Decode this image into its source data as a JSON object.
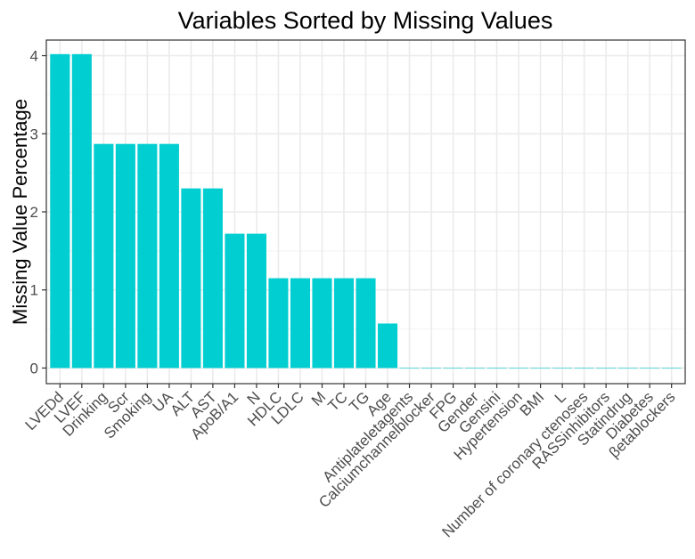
{
  "chart_data": {
    "type": "bar",
    "title": "Variables Sorted by Missing Values",
    "xlabel": "",
    "ylabel": "Missing Value Percentage",
    "ylim": [
      -0.2,
      4.2
    ],
    "yticks": [
      0,
      1,
      2,
      3,
      4
    ],
    "bar_color": "#00CED1",
    "categories": [
      "LVEDd",
      "LVEF",
      "Drinking",
      "Scr",
      "Smoking",
      "UA",
      "ALT",
      "AST",
      "ApoB/A1",
      "N",
      "HDLC",
      "LDLC",
      "M",
      "TC",
      "TG",
      "Age",
      "Antiplateletagents",
      "Calciumchannelblocker",
      "FPG",
      "Gender",
      "Gensini",
      "Hypertension",
      "BMI",
      "L",
      "Number of coronary ctenoses",
      "RASSinhibitors",
      "Statindrug",
      "Diabetes",
      "βetablockers"
    ],
    "values": [
      4.02,
      4.02,
      2.87,
      2.87,
      2.87,
      2.87,
      2.3,
      2.3,
      1.72,
      1.72,
      1.15,
      1.15,
      1.15,
      1.15,
      1.15,
      0.57,
      0,
      0,
      0,
      0,
      0,
      0,
      0,
      0,
      0,
      0,
      0,
      0,
      0
    ]
  }
}
